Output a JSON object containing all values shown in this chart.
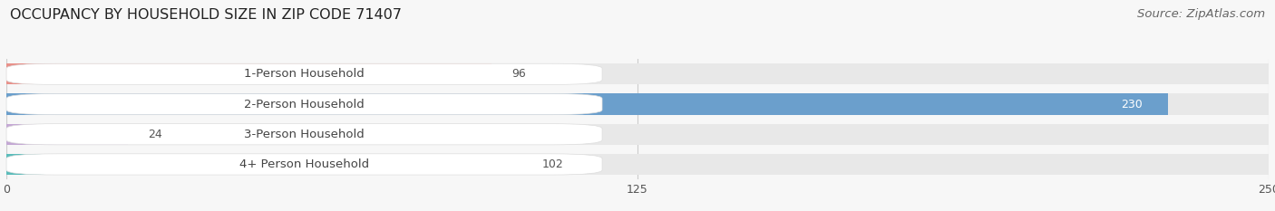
{
  "title": "OCCUPANCY BY HOUSEHOLD SIZE IN ZIP CODE 71407",
  "source": "Source: ZipAtlas.com",
  "categories": [
    "1-Person Household",
    "2-Person Household",
    "3-Person Household",
    "4+ Person Household"
  ],
  "values": [
    96,
    230,
    24,
    102
  ],
  "bar_colors": [
    "#e8918a",
    "#6b9fcc",
    "#c4a8d4",
    "#5bbcba"
  ],
  "bar_bg_color": "#e8e8e8",
  "background_color": "#f7f7f7",
  "xlim": [
    0,
    250
  ],
  "xticks": [
    0,
    125,
    250
  ],
  "title_fontsize": 11.5,
  "source_fontsize": 9.5,
  "value_fontsize": 9,
  "label_fontsize": 9.5,
  "value_230_color": "#ffffff",
  "value_other_color": "#555555"
}
